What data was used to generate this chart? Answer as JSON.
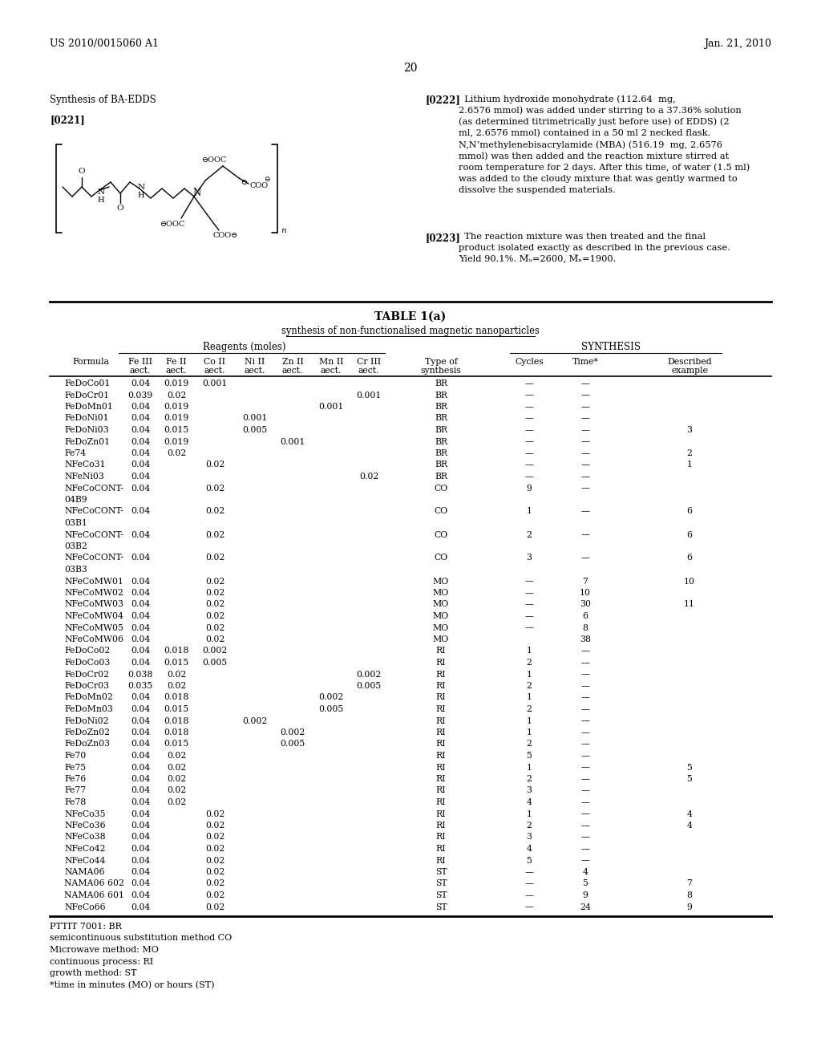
{
  "page_header_left": "US 2010/0015060 A1",
  "page_header_right": "Jan. 21, 2010",
  "page_number": "20",
  "section_title": "Synthesis of BA-EDDS",
  "paragraph_label1": "[0221]",
  "paragraph_label2": "[0222]",
  "paragraph_label3": "[0223]",
  "table_title": "TABLE 1(a)",
  "table_subtitle": "synthesis of non-functionalised magnetic nanoparticles",
  "group_header1": "Reagents (moles)",
  "group_header2": "SYNTHESIS",
  "col_headers_line1": [
    "Formula",
    "Fe III",
    "Fe II",
    "Co II",
    "Ni II",
    "Zn II",
    "Mn II",
    "Cr III",
    "Type of",
    "Cycles",
    "Time*",
    "Described"
  ],
  "col_headers_line2": [
    "",
    "aect.",
    "aect.",
    "aect.",
    "aect.",
    "aect.",
    "aect.",
    "aect.",
    "synthesis",
    "",
    "",
    "example"
  ],
  "rows": [
    [
      "FeDoCo01",
      "0.04",
      "0.019",
      "0.001",
      "",
      "",
      "",
      "",
      "BR",
      "—",
      "—",
      ""
    ],
    [
      "FeDoCr01",
      "0.039",
      "0.02",
      "",
      "",
      "",
      "",
      "0.001",
      "BR",
      "—",
      "—",
      ""
    ],
    [
      "FeDoMn01",
      "0.04",
      "0.019",
      "",
      "",
      "",
      "0.001",
      "",
      "BR",
      "—",
      "—",
      ""
    ],
    [
      "FeDoNi01",
      "0.04",
      "0.019",
      "",
      "0.001",
      "",
      "",
      "",
      "BR",
      "—",
      "—",
      ""
    ],
    [
      "FeDoNi03",
      "0.04",
      "0.015",
      "",
      "0.005",
      "",
      "",
      "",
      "BR",
      "—",
      "—",
      "3"
    ],
    [
      "FeDoZn01",
      "0.04",
      "0.019",
      "",
      "",
      "0.001",
      "",
      "",
      "BR",
      "—",
      "—",
      ""
    ],
    [
      "Fe74",
      "0.04",
      "0.02",
      "",
      "",
      "",
      "",
      "",
      "BR",
      "—",
      "—",
      "2"
    ],
    [
      "NFeCo31",
      "0.04",
      "",
      "0.02",
      "",
      "",
      "",
      "",
      "BR",
      "—",
      "—",
      "1"
    ],
    [
      "NFeNi03",
      "0.04",
      "",
      "",
      "",
      "",
      "",
      "0.02",
      "BR",
      "—",
      "—",
      ""
    ],
    [
      "NFeCoCONT-",
      "0.04",
      "",
      "0.02",
      "",
      "",
      "",
      "",
      "CO",
      "9",
      "—",
      ""
    ],
    [
      "04B9",
      "",
      "",
      "",
      "",
      "",
      "",
      "",
      "",
      "",
      "",
      ""
    ],
    [
      "NFeCoCONT-",
      "0.04",
      "",
      "0.02",
      "",
      "",
      "",
      "",
      "CO",
      "1",
      "—",
      "6"
    ],
    [
      "03B1",
      "",
      "",
      "",
      "",
      "",
      "",
      "",
      "",
      "",
      "",
      ""
    ],
    [
      "NFeCoCONT-",
      "0.04",
      "",
      "0.02",
      "",
      "",
      "",
      "",
      "CO",
      "2",
      "—",
      "6"
    ],
    [
      "03B2",
      "",
      "",
      "",
      "",
      "",
      "",
      "",
      "",
      "",
      "",
      ""
    ],
    [
      "NFeCoCONT-",
      "0.04",
      "",
      "0.02",
      "",
      "",
      "",
      "",
      "CO",
      "3",
      "—",
      "6"
    ],
    [
      "03B3",
      "",
      "",
      "",
      "",
      "",
      "",
      "",
      "",
      "",
      "",
      ""
    ],
    [
      "NFeCoMW01",
      "0.04",
      "",
      "0.02",
      "",
      "",
      "",
      "",
      "MO",
      "—",
      "7",
      "10"
    ],
    [
      "NFeCoMW02",
      "0.04",
      "",
      "0.02",
      "",
      "",
      "",
      "",
      "MO",
      "—",
      "10",
      ""
    ],
    [
      "NFeCoMW03",
      "0.04",
      "",
      "0.02",
      "",
      "",
      "",
      "",
      "MO",
      "—",
      "30",
      "11"
    ],
    [
      "NFeCoMW04",
      "0.04",
      "",
      "0.02",
      "",
      "",
      "",
      "",
      "MO",
      "—",
      "6",
      ""
    ],
    [
      "NFeCoMW05",
      "0.04",
      "",
      "0.02",
      "",
      "",
      "",
      "",
      "MO",
      "—",
      "8",
      ""
    ],
    [
      "NFeCoMW06",
      "0.04",
      "",
      "0.02",
      "",
      "",
      "",
      "",
      "MO",
      "",
      "38",
      ""
    ],
    [
      "FeDoCo02",
      "0.04",
      "0.018",
      "0.002",
      "",
      "",
      "",
      "",
      "RI",
      "1",
      "—",
      ""
    ],
    [
      "FeDoCo03",
      "0.04",
      "0.015",
      "0.005",
      "",
      "",
      "",
      "",
      "RI",
      "2",
      "—",
      ""
    ],
    [
      "FeDoCr02",
      "0.038",
      "0.02",
      "",
      "",
      "",
      "",
      "0.002",
      "RI",
      "1",
      "—",
      ""
    ],
    [
      "FeDoCr03",
      "0.035",
      "0.02",
      "",
      "",
      "",
      "",
      "0.005",
      "RI",
      "2",
      "—",
      ""
    ],
    [
      "FeDoMn02",
      "0.04",
      "0.018",
      "",
      "",
      "",
      "0.002",
      "",
      "RI",
      "1",
      "—",
      ""
    ],
    [
      "FeDoMn03",
      "0.04",
      "0.015",
      "",
      "",
      "",
      "0.005",
      "",
      "RI",
      "2",
      "—",
      ""
    ],
    [
      "FeDoNi02",
      "0.04",
      "0.018",
      "",
      "0.002",
      "",
      "",
      "",
      "RI",
      "1",
      "—",
      ""
    ],
    [
      "FeDoZn02",
      "0.04",
      "0.018",
      "",
      "",
      "0.002",
      "",
      "",
      "RI",
      "1",
      "—",
      ""
    ],
    [
      "FeDoZn03",
      "0.04",
      "0.015",
      "",
      "",
      "0.005",
      "",
      "",
      "RI",
      "2",
      "—",
      ""
    ],
    [
      "Fe70",
      "0.04",
      "0.02",
      "",
      "",
      "",
      "",
      "",
      "RI",
      "5",
      "—",
      ""
    ],
    [
      "Fe75",
      "0.04",
      "0.02",
      "",
      "",
      "",
      "",
      "",
      "RI",
      "1",
      "—",
      "5"
    ],
    [
      "Fe76",
      "0.04",
      "0.02",
      "",
      "",
      "",
      "",
      "",
      "RI",
      "2",
      "—",
      "5"
    ],
    [
      "Fe77",
      "0.04",
      "0.02",
      "",
      "",
      "",
      "",
      "",
      "RI",
      "3",
      "—",
      ""
    ],
    [
      "Fe78",
      "0.04",
      "0.02",
      "",
      "",
      "",
      "",
      "",
      "RI",
      "4",
      "—",
      ""
    ],
    [
      "NFeCo35",
      "0.04",
      "",
      "0.02",
      "",
      "",
      "",
      "",
      "RI",
      "1",
      "—",
      "4"
    ],
    [
      "NFeCo36",
      "0.04",
      "",
      "0.02",
      "",
      "",
      "",
      "",
      "RI",
      "2",
      "—",
      "4"
    ],
    [
      "NFeCo38",
      "0.04",
      "",
      "0.02",
      "",
      "",
      "",
      "",
      "RI",
      "3",
      "—",
      ""
    ],
    [
      "NFeCo42",
      "0.04",
      "",
      "0.02",
      "",
      "",
      "",
      "",
      "RI",
      "4",
      "—",
      ""
    ],
    [
      "NFeCo44",
      "0.04",
      "",
      "0.02",
      "",
      "",
      "",
      "",
      "RI",
      "5",
      "—",
      ""
    ],
    [
      "NAMA06",
      "0.04",
      "",
      "0.02",
      "",
      "",
      "",
      "",
      "ST",
      "—",
      "4",
      ""
    ],
    [
      "NAMA06 602",
      "0.04",
      "",
      "0.02",
      "",
      "",
      "",
      "",
      "ST",
      "—",
      "5",
      "7"
    ],
    [
      "NAMA06 601",
      "0.04",
      "",
      "0.02",
      "",
      "",
      "",
      "",
      "ST",
      "—",
      "9",
      "8"
    ],
    [
      "NFeCo66",
      "0.04",
      "",
      "0.02",
      "",
      "",
      "",
      "",
      "ST",
      "—",
      "24",
      "9"
    ]
  ],
  "footnotes": [
    "PTTIT 7001: BR",
    "semicontinuous substitution method CO",
    "Microwave method: MO",
    "continuous process: RI",
    "growth method: ST",
    "*time in minutes (MO) or hours (ST)"
  ],
  "bg_color": "#ffffff",
  "text_color": "#000000"
}
